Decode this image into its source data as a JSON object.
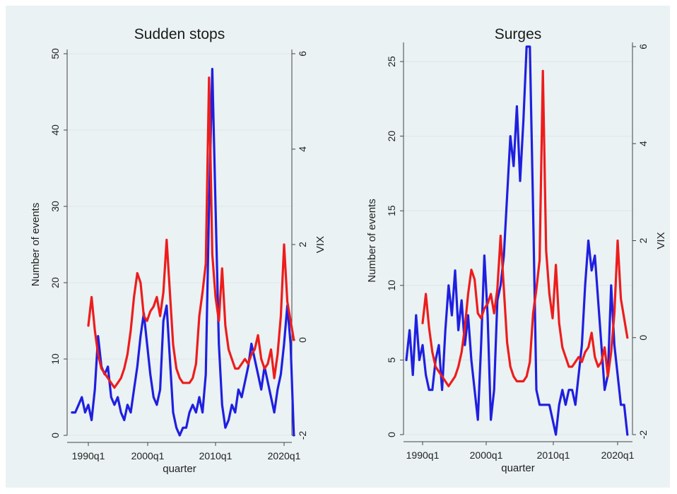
{
  "chart_data": [
    {
      "type": "line",
      "title": "Sudden stops",
      "xlabel": "quarter",
      "ylabel": "Number of events",
      "y2label": "VIX",
      "xticks": [
        "1990q1",
        "2000q1",
        "2010q1",
        "2020q1"
      ],
      "xlim": [
        1987,
        2022
      ],
      "ylim": [
        0,
        50
      ],
      "yticks": [
        0,
        10,
        20,
        30,
        40,
        50
      ],
      "y2lim": [
        -2,
        6
      ],
      "y2ticks": [
        -2,
        0,
        2,
        4,
        6
      ],
      "colors": {
        "events": "#1f1fe0",
        "vix": "#ee1c1c"
      },
      "series": [
        {
          "axis": "left",
          "color": "#1f1fe0",
          "x": [
            1987.5,
            1988,
            1988.5,
            1989,
            1989.5,
            1990,
            1990.5,
            1991,
            1991.5,
            1992,
            1992.5,
            1993,
            1993.5,
            1994,
            1994.5,
            1995,
            1995.5,
            1996,
            1996.5,
            1997,
            1997.5,
            1998,
            1998.5,
            1999,
            1999.5,
            2000,
            2000.5,
            2001,
            2001.5,
            2002,
            2002.5,
            2003,
            2003.5,
            2004,
            2004.5,
            2005,
            2005.5,
            2006,
            2006.5,
            2007,
            2007.5,
            2008,
            2008.5,
            2009,
            2009.5,
            2010,
            2010.5,
            2011,
            2011.5,
            2012,
            2012.5,
            2013,
            2013.5,
            2014,
            2014.5,
            2015,
            2015.5,
            2016,
            2016.5,
            2017,
            2017.5,
            2018,
            2018.5,
            2019,
            2019.5,
            2020,
            2020.5,
            2021,
            2021.5
          ],
          "y": [
            3,
            3,
            4,
            5,
            3,
            4,
            2,
            6,
            13,
            9,
            8,
            9,
            5,
            4,
            5,
            3,
            2,
            4,
            3,
            6,
            9,
            13,
            16,
            12,
            8,
            5,
            4,
            6,
            15,
            17,
            10,
            3,
            1,
            0,
            1,
            1,
            3,
            4,
            3,
            5,
            3,
            8,
            30,
            48,
            30,
            12,
            4,
            1,
            2,
            4,
            3,
            6,
            5,
            7,
            9,
            12,
            10,
            8,
            6,
            9,
            7,
            5,
            3,
            6,
            8,
            12,
            17,
            12,
            0
          ]
        },
        {
          "axis": "right",
          "color": "#ee1c1c",
          "x": [
            1990,
            1990.5,
            1991,
            1991.5,
            1992,
            1992.5,
            1993,
            1993.5,
            1994,
            1994.5,
            1995,
            1995.5,
            1996,
            1996.5,
            1997,
            1997.5,
            1998,
            1998.5,
            1999,
            1999.5,
            2000,
            2000.5,
            2001,
            2001.5,
            2002,
            2002.5,
            2003,
            2003.5,
            2004,
            2004.5,
            2005,
            2005.5,
            2006,
            2006.5,
            2007,
            2007.5,
            2008,
            2008.5,
            2009,
            2009.5,
            2010,
            2010.5,
            2011,
            2011.5,
            2012,
            2012.5,
            2013,
            2013.5,
            2014,
            2014.5,
            2015,
            2015.5,
            2016,
            2016.5,
            2017,
            2017.5,
            2018,
            2018.5,
            2019,
            2019.5,
            2020,
            2020.5,
            2021,
            2021.5
          ],
          "y": [
            0.3,
            0.9,
            0.2,
            -0.3,
            -0.6,
            -0.7,
            -0.8,
            -0.9,
            -1.0,
            -0.9,
            -0.8,
            -0.6,
            -0.3,
            0.2,
            0.9,
            1.4,
            1.2,
            0.5,
            0.4,
            0.6,
            0.7,
            0.9,
            0.5,
            1.0,
            2.1,
            1.0,
            -0.1,
            -0.6,
            -0.8,
            -0.9,
            -0.9,
            -0.9,
            -0.8,
            -0.5,
            0.5,
            1.0,
            1.6,
            5.5,
            1.8,
            0.9,
            0.4,
            1.5,
            0.3,
            -0.2,
            -0.4,
            -0.6,
            -0.6,
            -0.5,
            -0.4,
            -0.5,
            -0.3,
            -0.2,
            0.1,
            -0.4,
            -0.6,
            -0.5,
            -0.2,
            -0.8,
            -0.3,
            0.5,
            2.0,
            0.8,
            0.4,
            0.0
          ]
        }
      ]
    },
    {
      "type": "line",
      "title": "Surges",
      "xlabel": "quarter",
      "ylabel": "Number of events",
      "y2label": "VIX",
      "xticks": [
        "1990q1",
        "2000q1",
        "2010q1",
        "2020q1"
      ],
      "xlim": [
        1987,
        2022
      ],
      "ylim": [
        0,
        26
      ],
      "yticks": [
        0,
        5,
        10,
        15,
        20,
        25
      ],
      "y2lim": [
        -2,
        6
      ],
      "y2ticks": [
        -2,
        0,
        2,
        4,
        6
      ],
      "colors": {
        "events": "#1f1fe0",
        "vix": "#ee1c1c"
      },
      "series": [
        {
          "axis": "left",
          "color": "#1f1fe0",
          "x": [
            1987.5,
            1988,
            1988.5,
            1989,
            1989.5,
            1990,
            1990.5,
            1991,
            1991.5,
            1992,
            1992.5,
            1993,
            1993.5,
            1994,
            1994.5,
            1995,
            1995.5,
            1996,
            1996.5,
            1997,
            1997.5,
            1998,
            1998.5,
            1999,
            1999.5,
            2000,
            2000.5,
            2001,
            2001.5,
            2002,
            2002.5,
            2003,
            2003.5,
            2004,
            2004.5,
            2005,
            2005.5,
            2006,
            2006.5,
            2007,
            2007.5,
            2008,
            2008.5,
            2009,
            2009.5,
            2010,
            2010.5,
            2011,
            2011.5,
            2012,
            2012.5,
            2013,
            2013.5,
            2014,
            2014.5,
            2015,
            2015.5,
            2016,
            2016.5,
            2017,
            2017.5,
            2018,
            2018.5,
            2019,
            2019.5,
            2020,
            2020.5,
            2021,
            2021.5
          ],
          "y": [
            5,
            7,
            4,
            8,
            5,
            6,
            4,
            3,
            3,
            5,
            6,
            3,
            7,
            10,
            8,
            11,
            7,
            9,
            6,
            8,
            5,
            3,
            1,
            6,
            12,
            8,
            1,
            3,
            9,
            10,
            12,
            16,
            20,
            18,
            22,
            17,
            21,
            26,
            26,
            15,
            3,
            2,
            2,
            2,
            2,
            1,
            0,
            2,
            3,
            2,
            3,
            3,
            2,
            4,
            6,
            10,
            13,
            11,
            12,
            9,
            6,
            3,
            4,
            10,
            6,
            4,
            2,
            2,
            0
          ]
        },
        {
          "axis": "right",
          "color": "#ee1c1c",
          "x": [
            1990,
            1990.5,
            1991,
            1991.5,
            1992,
            1992.5,
            1993,
            1993.5,
            1994,
            1994.5,
            1995,
            1995.5,
            1996,
            1996.5,
            1997,
            1997.5,
            1998,
            1998.5,
            1999,
            1999.5,
            2000,
            2000.5,
            2001,
            2001.5,
            2002,
            2002.5,
            2003,
            2003.5,
            2004,
            2004.5,
            2005,
            2005.5,
            2006,
            2006.5,
            2007,
            2007.5,
            2008,
            2008.5,
            2009,
            2009.5,
            2010,
            2010.5,
            2011,
            2011.5,
            2012,
            2012.5,
            2013,
            2013.5,
            2014,
            2014.5,
            2015,
            2015.5,
            2016,
            2016.5,
            2017,
            2017.5,
            2018,
            2018.5,
            2019,
            2019.5,
            2020,
            2020.5,
            2021,
            2021.5
          ],
          "y": [
            0.3,
            0.9,
            0.2,
            -0.3,
            -0.6,
            -0.7,
            -0.8,
            -0.9,
            -1.0,
            -0.9,
            -0.8,
            -0.6,
            -0.3,
            0.2,
            0.9,
            1.4,
            1.2,
            0.5,
            0.4,
            0.6,
            0.7,
            0.9,
            0.5,
            1.0,
            2.1,
            1.0,
            -0.1,
            -0.6,
            -0.8,
            -0.9,
            -0.9,
            -0.9,
            -0.8,
            -0.5,
            0.5,
            1.0,
            1.6,
            5.5,
            1.8,
            0.9,
            0.4,
            1.5,
            0.3,
            -0.2,
            -0.4,
            -0.6,
            -0.6,
            -0.5,
            -0.4,
            -0.5,
            -0.3,
            -0.2,
            0.1,
            -0.4,
            -0.6,
            -0.5,
            -0.2,
            -0.8,
            -0.3,
            0.5,
            2.0,
            0.8,
            0.4,
            0.0
          ]
        }
      ]
    }
  ]
}
